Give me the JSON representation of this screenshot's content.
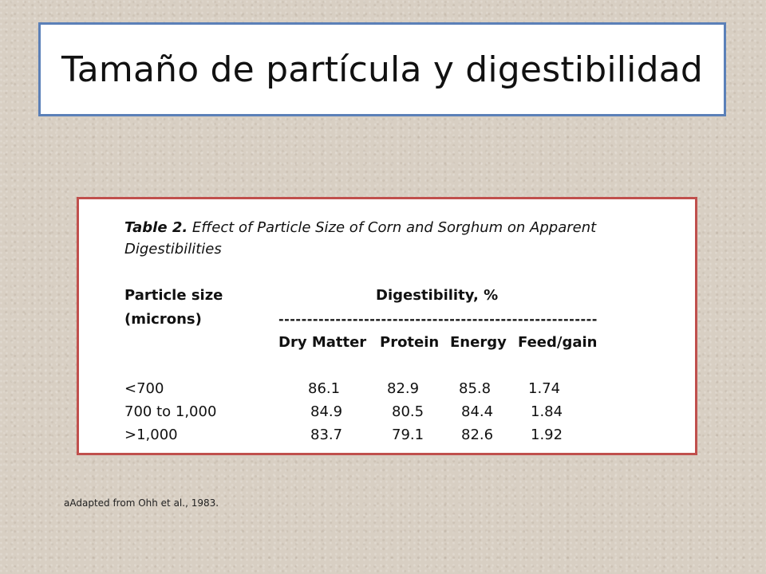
{
  "title": "Tamaño de partícula y digestibilidad",
  "table": {
    "caption_number": "Table 2.",
    "caption_text": " Effect of Particle Size of Corn and Sorghum on Apparent Digestibilities",
    "header_particle": "Particle size",
    "header_microns": "(microns)",
    "header_digestibility": "Digestibility, %",
    "header_dashes": "--------------------------------------------------------",
    "columns": [
      "Dry Matter",
      "Protein",
      "Energy",
      "Feed/gain"
    ],
    "rows": [
      {
        "size": "<700",
        "dry_matter": "86.1",
        "protein": "82.9",
        "energy": "85.8",
        "feed_gain": "1.74"
      },
      {
        "size": "700 to 1,000",
        "dry_matter": "84.9",
        "protein": "80.5",
        "energy": "84.4",
        "feed_gain": "1.84"
      },
      {
        "size": ">1,000",
        "dry_matter": "83.7",
        "protein": "79.1",
        "energy": "82.6",
        "feed_gain": "1.92"
      }
    ]
  },
  "footnote": "aAdapted from Ohh et al., 1983."
}
